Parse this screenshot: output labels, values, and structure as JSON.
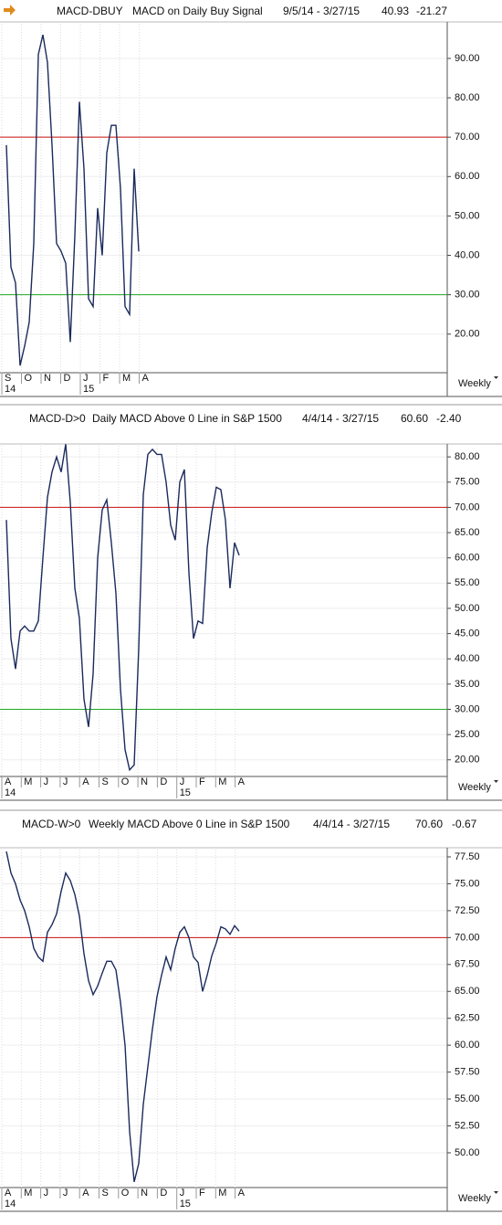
{
  "chart_data": [
    {
      "type": "line",
      "symbol": "MACD-DBUY",
      "title": "MACD on Daily Buy Signal",
      "date_range": "9/5/14 - 3/27/15",
      "last": "40.93",
      "change": "-21.27",
      "months": [
        "S",
        "O",
        "N",
        "D",
        "J",
        "F",
        "M",
        "A"
      ],
      "years": [
        "14",
        null,
        null,
        null,
        "15",
        null,
        null,
        null
      ],
      "series": [
        {
          "color": "#1b2a5c",
          "values": [
            68,
            37,
            33,
            12,
            17,
            23,
            43,
            91,
            96,
            89,
            68,
            43,
            41,
            38,
            18,
            45,
            79,
            62,
            29,
            27,
            52,
            40,
            66,
            73,
            73,
            57,
            27,
            25,
            62,
            41
          ]
        }
      ],
      "ylim": [
        10.2,
        98.8
      ],
      "yticks": [
        {
          "value": 20,
          "label": "20.00"
        },
        {
          "value": 30,
          "label": "30.00"
        },
        {
          "value": 40,
          "label": "40.00"
        },
        {
          "value": 50,
          "label": "50.00"
        },
        {
          "value": 60,
          "label": "60.00"
        },
        {
          "value": 70,
          "label": "70.00"
        },
        {
          "value": 80,
          "label": "80.00"
        },
        {
          "value": 90,
          "label": "90.00"
        }
      ],
      "hlines": [
        {
          "value": 70,
          "color": "#cc1111"
        },
        {
          "value": 30,
          "color": "#22aa22"
        }
      ],
      "period": "Weekly",
      "grid": true
    },
    {
      "type": "line",
      "symbol": "MACD-D>0",
      "title": "Daily MACD Above 0 Line in S&P 1500",
      "date_range": "4/4/14 - 3/27/15",
      "last": "60.60",
      "change": "-2.40",
      "months": [
        "A",
        "M",
        "J",
        "J",
        "A",
        "S",
        "O",
        "N",
        "D",
        "J",
        "F",
        "M",
        "A"
      ],
      "years": [
        "14",
        null,
        null,
        null,
        null,
        null,
        null,
        null,
        null,
        "15",
        null,
        null,
        null
      ],
      "series": [
        {
          "color": "#1b2a5c",
          "values": [
            67.5,
            44,
            38,
            45.5,
            46.5,
            45.5,
            45.5,
            47.5,
            60,
            72,
            77,
            80,
            77,
            82.5,
            71,
            54,
            48,
            32,
            26.5,
            37,
            60,
            69.5,
            71.5,
            63,
            53,
            34,
            22,
            18,
            19,
            42,
            72.5,
            80.5,
            81.5,
            80.5,
            80.5,
            75,
            66.5,
            63.5,
            75,
            77.5,
            57,
            44,
            47.5,
            47,
            62,
            69,
            74,
            73.5,
            67.5,
            54,
            63,
            60.5
          ]
        }
      ],
      "ylim": [
        16.7,
        82.2
      ],
      "yticks": [
        {
          "value": 20,
          "label": "20.00"
        },
        {
          "value": 25,
          "label": "25.00"
        },
        {
          "value": 30,
          "label": "30.00"
        },
        {
          "value": 35,
          "label": "35.00"
        },
        {
          "value": 40,
          "label": "40.00"
        },
        {
          "value": 45,
          "label": "45.00"
        },
        {
          "value": 50,
          "label": "50.00"
        },
        {
          "value": 55,
          "label": "55.00"
        },
        {
          "value": 60,
          "label": "60.00"
        },
        {
          "value": 65,
          "label": "65.00"
        },
        {
          "value": 70,
          "label": "70.00"
        },
        {
          "value": 75,
          "label": "75.00"
        },
        {
          "value": 80,
          "label": "80.00"
        }
      ],
      "hlines": [
        {
          "value": 70,
          "color": "#cc1111"
        },
        {
          "value": 30,
          "color": "#22aa22"
        }
      ],
      "period": "Weekly",
      "grid": true
    },
    {
      "type": "line",
      "symbol": "MACD-W>0",
      "title": "Weekly MACD Above 0 Line in S&P 1500",
      "date_range": "4/4/14 - 3/27/15",
      "last": "70.60",
      "change": "-0.67",
      "months": [
        "A",
        "M",
        "J",
        "J",
        "A",
        "S",
        "O",
        "N",
        "D",
        "J",
        "F",
        "M",
        "A"
      ],
      "years": [
        "14",
        null,
        null,
        null,
        null,
        null,
        null,
        null,
        null,
        "15",
        null,
        null,
        null
      ],
      "series": [
        {
          "color": "#1b2a5c",
          "values": [
            78,
            76,
            75,
            73.5,
            72.5,
            71,
            69,
            68.2,
            67.8,
            70.5,
            71.2,
            72.2,
            74.3,
            76,
            75.3,
            74,
            72,
            68.5,
            66,
            64.7,
            65.5,
            66.7,
            67.8,
            67.8,
            67,
            64,
            60,
            52,
            47.3,
            49,
            54.5,
            58,
            61.5,
            64.5,
            66.5,
            68.2,
            67,
            69,
            70.5,
            71,
            70,
            68.2,
            67.7,
            65,
            66.5,
            68.3,
            69.5,
            71,
            70.8,
            70.3,
            71.1,
            70.6
          ]
        }
      ],
      "ylim": [
        46.77,
        78.18
      ],
      "yticks": [
        {
          "value": 50,
          "label": "50.00"
        },
        {
          "value": 52.5,
          "label": "52.50"
        },
        {
          "value": 55,
          "label": "55.00"
        },
        {
          "value": 57.5,
          "label": "57.50"
        },
        {
          "value": 60,
          "label": "60.00"
        },
        {
          "value": 62.5,
          "label": "62.50"
        },
        {
          "value": 65,
          "label": "65.00"
        },
        {
          "value": 67.5,
          "label": "67.50"
        },
        {
          "value": 70,
          "label": "70.00"
        },
        {
          "value": 72.5,
          "label": "72.50"
        },
        {
          "value": 75,
          "label": "75.00"
        },
        {
          "value": 77.5,
          "label": "77.50"
        }
      ],
      "hlines": [
        {
          "value": 70,
          "color": "#cc1111"
        }
      ],
      "period": "Weekly",
      "grid": true
    }
  ]
}
